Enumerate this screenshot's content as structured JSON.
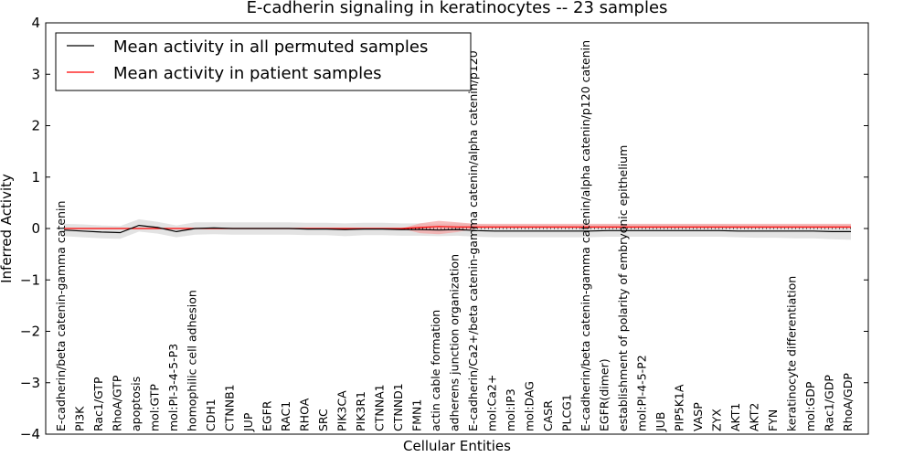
{
  "chart_data": {
    "type": "line",
    "title": "E-cadherin signaling in keratinocytes -- 23 samples",
    "xlabel": "Cellular Entities",
    "ylabel": "Inferred Activity",
    "ylim": [
      -4,
      4
    ],
    "yticks": [
      -4,
      -3,
      -2,
      -1,
      0,
      1,
      2,
      3,
      4
    ],
    "ytick_labels": [
      "−4",
      "−3",
      "−2",
      "−1",
      "0",
      "1",
      "2",
      "3",
      "4"
    ],
    "grid": false,
    "legend_position": "top-left",
    "categories": [
      "E-cadherin/beta catenin-gamma catenin",
      "PI3K",
      "Rac1/GTP",
      "RhoA/GTP",
      "apoptosis",
      "mol:GTP",
      "mol:PI-3-4-5-P3",
      "homophilic cell adhesion",
      "CDH1",
      "CTNNB1",
      "JUP",
      "EGFR",
      "RAC1",
      "RHOA",
      "SRC",
      "PIK3CA",
      "PIK3R1",
      "CTNNA1",
      "CTNND1",
      "FMN1",
      "actin cable formation",
      "adherens junction organization",
      "E-cadherin/Ca2+/beta catenin-gamma catenin/alpha catenin/p120",
      "mol:Ca2+",
      "mol:IP3",
      "mol:DAG",
      "CASR",
      "PLCG1",
      "E-cadherin/beta catenin-gamma catenin/alpha catenin/p120 catenin",
      "EGFR(dimer)",
      "establishment of polarity of embryonic epithelium",
      "mol:PI-4-5-P2",
      "JUB",
      "PIP5K1A",
      "VASP",
      "ZYX",
      "AKT1",
      "AKT2",
      "FYN",
      "keratinocyte differentiation",
      "mol:GDP",
      "Rac1/GDP",
      "RhoA/GDP"
    ],
    "series": [
      {
        "name": "Mean activity in all permuted samples",
        "color": "#000000",
        "values": [
          -0.03,
          -0.05,
          -0.07,
          -0.08,
          0.06,
          0.02,
          -0.06,
          0.0,
          0.01,
          0.0,
          0.0,
          0.0,
          0.0,
          -0.01,
          -0.01,
          -0.02,
          -0.01,
          -0.01,
          -0.02,
          -0.02,
          -0.03,
          -0.02,
          -0.04,
          -0.05,
          -0.05,
          -0.05,
          -0.05,
          -0.05,
          -0.05,
          -0.04,
          -0.04,
          -0.04,
          -0.04,
          -0.04,
          -0.04,
          -0.04,
          -0.05,
          -0.05,
          -0.05,
          -0.05,
          -0.05,
          -0.06,
          -0.06
        ],
        "band_lower": [
          -0.15,
          -0.17,
          -0.19,
          -0.2,
          -0.06,
          -0.1,
          -0.17,
          -0.12,
          -0.11,
          -0.12,
          -0.12,
          -0.12,
          -0.12,
          -0.13,
          -0.13,
          -0.15,
          -0.13,
          -0.13,
          -0.14,
          -0.14,
          -0.15,
          -0.14,
          -0.16,
          -0.17,
          -0.17,
          -0.17,
          -0.17,
          -0.17,
          -0.17,
          -0.16,
          -0.16,
          -0.16,
          -0.16,
          -0.16,
          -0.16,
          -0.16,
          -0.17,
          -0.18,
          -0.18,
          -0.19,
          -0.19,
          -0.21,
          -0.22
        ],
        "band_upper": [
          0.09,
          0.08,
          0.06,
          0.05,
          0.18,
          0.13,
          0.06,
          0.12,
          0.12,
          0.12,
          0.12,
          0.12,
          0.12,
          0.11,
          0.11,
          0.1,
          0.11,
          0.11,
          0.1,
          0.1,
          0.09,
          0.1,
          0.08,
          0.07,
          0.07,
          0.07,
          0.07,
          0.07,
          0.07,
          0.08,
          0.08,
          0.08,
          0.08,
          0.08,
          0.08,
          0.08,
          0.07,
          0.07,
          0.07,
          0.07,
          0.07,
          0.07,
          0.07
        ]
      },
      {
        "name": "Mean activity in patient samples",
        "color": "#ff0000",
        "values": [
          0.0,
          0.0,
          0.0,
          0.0,
          0.0,
          0.0,
          0.0,
          0.0,
          0.0,
          0.0,
          0.0,
          0.0,
          0.0,
          0.0,
          0.0,
          0.0,
          0.0,
          0.0,
          0.0,
          0.02,
          0.04,
          0.03,
          0.03,
          0.03,
          0.03,
          0.03,
          0.03,
          0.03,
          0.03,
          0.03,
          0.03,
          0.03,
          0.03,
          0.03,
          0.03,
          0.03,
          0.03,
          0.03,
          0.03,
          0.03,
          0.03,
          0.03,
          0.03
        ],
        "band_lower": [
          0.0,
          0.0,
          0.0,
          0.0,
          0.0,
          0.0,
          0.0,
          0.0,
          0.0,
          0.0,
          0.0,
          0.0,
          0.0,
          0.0,
          0.0,
          0.0,
          0.0,
          0.0,
          0.0,
          -0.09,
          -0.11,
          -0.07,
          0.0,
          0.0,
          0.0,
          0.0,
          0.0,
          0.0,
          0.0,
          0.0,
          0.0,
          0.0,
          0.0,
          0.0,
          0.0,
          0.0,
          0.0,
          0.0,
          0.0,
          0.0,
          0.0,
          0.0,
          0.0
        ],
        "band_upper": [
          0.0,
          0.0,
          0.0,
          0.0,
          0.0,
          0.0,
          0.0,
          0.0,
          0.0,
          0.0,
          0.0,
          0.0,
          0.0,
          0.0,
          0.0,
          0.0,
          0.0,
          0.0,
          0.0,
          0.1,
          0.15,
          0.12,
          0.09,
          0.09,
          0.09,
          0.09,
          0.09,
          0.09,
          0.09,
          0.09,
          0.09,
          0.09,
          0.09,
          0.09,
          0.09,
          0.09,
          0.09,
          0.09,
          0.09,
          0.09,
          0.09,
          0.09,
          0.09
        ]
      }
    ],
    "reference_line": {
      "y": 0,
      "style": "dotted",
      "color": "#000000"
    }
  }
}
